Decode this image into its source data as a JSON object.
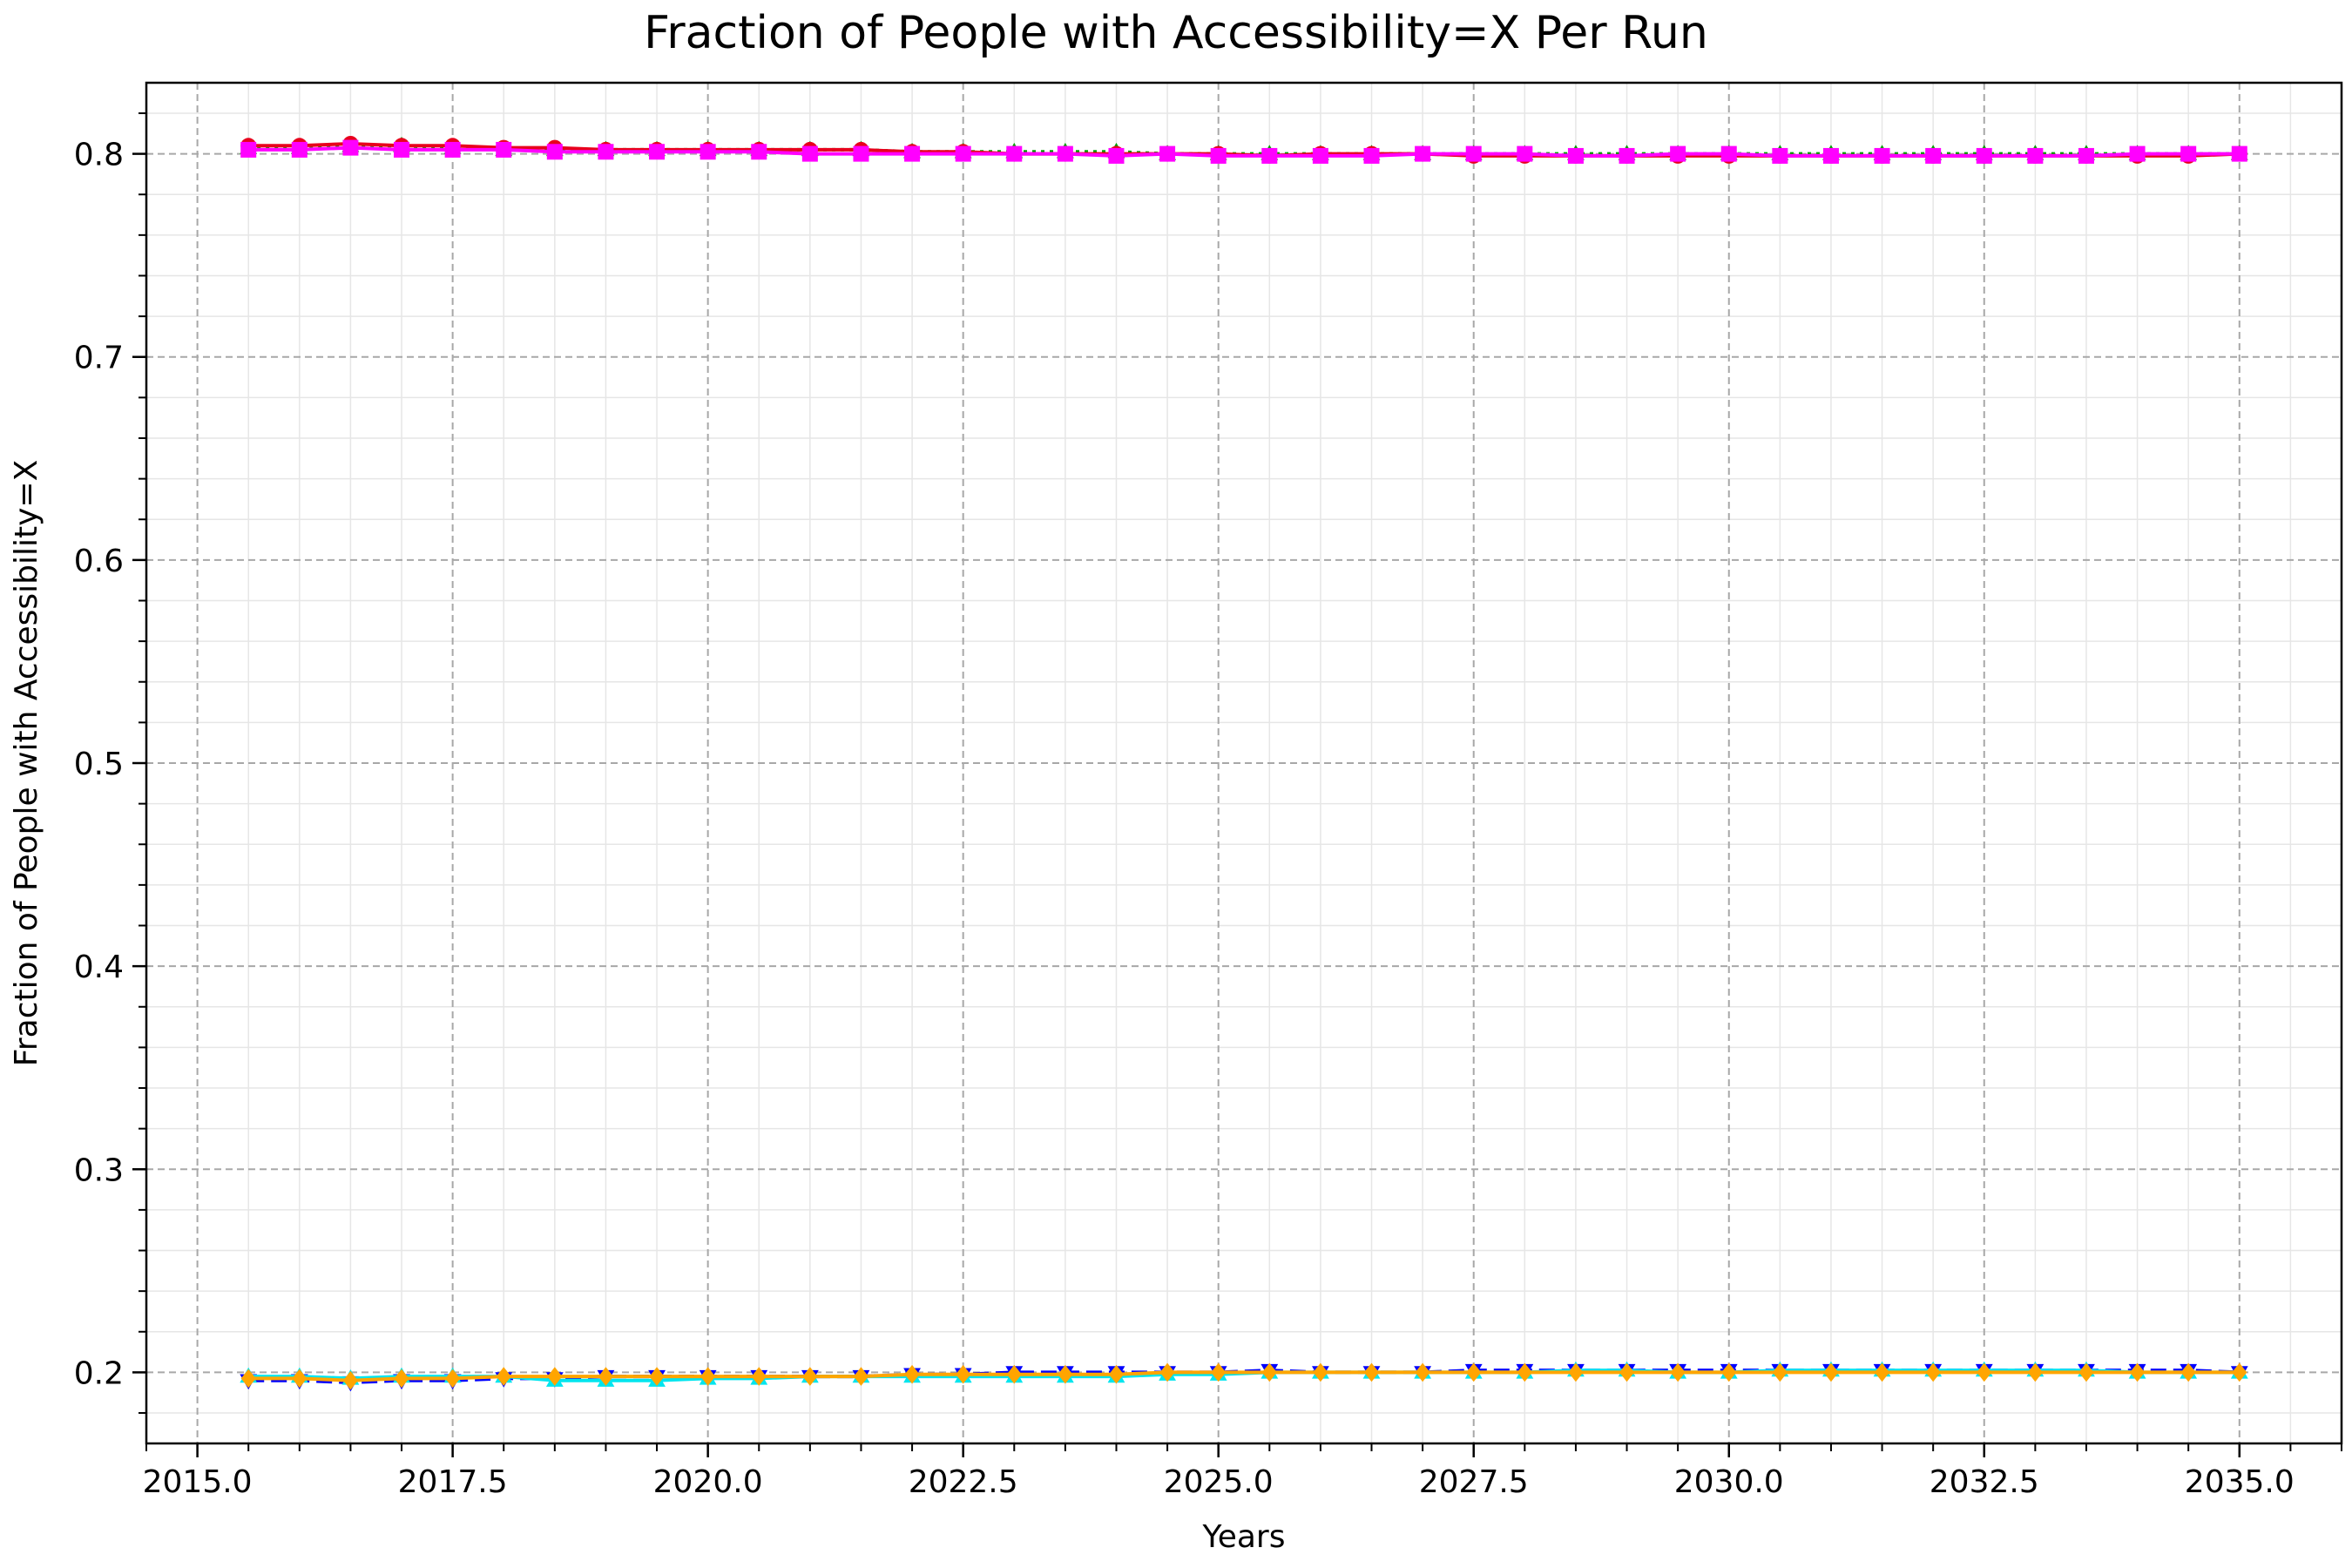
{
  "chart_data": {
    "type": "line",
    "title": "Fraction of People with Accessibility=X Per Run",
    "xlabel": "Years",
    "ylabel": "Fraction of People with Accessibility=X",
    "xlim": [
      2014.5,
      2036.0
    ],
    "ylim": [
      0.165,
      0.835
    ],
    "xticks": [
      "2015.0",
      "2017.5",
      "2020.0",
      "2022.5",
      "2025.0",
      "2027.5",
      "2030.0",
      "2032.5",
      "2035.0"
    ],
    "yticks": [
      "0.2",
      "0.3",
      "0.4",
      "0.5",
      "0.6",
      "0.7",
      "0.8"
    ],
    "grid": true,
    "minor_grid": true,
    "legend": "none",
    "x": [
      2015.5,
      2016.0,
      2016.5,
      2017.0,
      2017.5,
      2018.0,
      2018.5,
      2019.0,
      2019.5,
      2020.0,
      2020.5,
      2021.0,
      2021.5,
      2022.0,
      2022.5,
      2023.0,
      2023.5,
      2024.0,
      2024.5,
      2025.0,
      2025.5,
      2026.0,
      2026.5,
      2027.0,
      2027.5,
      2028.0,
      2028.5,
      2029.0,
      2029.5,
      2030.0,
      2030.5,
      2031.0,
      2031.5,
      2032.0,
      2032.5,
      2033.0,
      2033.5,
      2034.0,
      2034.5,
      2035.0
    ],
    "series": [
      {
        "color": "#00a000",
        "marker": "triangle-up",
        "dash": "dotted",
        "values": [
          0.803,
          0.803,
          0.804,
          0.804,
          0.803,
          0.802,
          0.802,
          0.802,
          0.802,
          0.802,
          0.802,
          0.802,
          0.802,
          0.801,
          0.801,
          0.801,
          0.801,
          0.801,
          0.8,
          0.8,
          0.8,
          0.8,
          0.8,
          0.8,
          0.8,
          0.8,
          0.8,
          0.8,
          0.8,
          0.8,
          0.8,
          0.8,
          0.8,
          0.8,
          0.8,
          0.8,
          0.8,
          0.8,
          0.8,
          0.8
        ]
      },
      {
        "color": "#e8001c",
        "marker": "circle",
        "dash": "solid",
        "values": [
          0.804,
          0.804,
          0.805,
          0.804,
          0.804,
          0.803,
          0.803,
          0.802,
          0.802,
          0.802,
          0.802,
          0.802,
          0.802,
          0.801,
          0.801,
          0.8,
          0.8,
          0.8,
          0.8,
          0.8,
          0.799,
          0.8,
          0.8,
          0.8,
          0.799,
          0.799,
          0.799,
          0.799,
          0.799,
          0.799,
          0.799,
          0.799,
          0.799,
          0.799,
          0.799,
          0.799,
          0.799,
          0.799,
          0.799,
          0.8
        ]
      },
      {
        "color": "#ff00ff",
        "marker": "square",
        "dash": "solid",
        "values": [
          0.802,
          0.802,
          0.803,
          0.802,
          0.802,
          0.802,
          0.801,
          0.801,
          0.801,
          0.801,
          0.801,
          0.8,
          0.8,
          0.8,
          0.8,
          0.8,
          0.8,
          0.799,
          0.8,
          0.799,
          0.799,
          0.799,
          0.799,
          0.8,
          0.8,
          0.8,
          0.799,
          0.799,
          0.8,
          0.8,
          0.799,
          0.799,
          0.799,
          0.799,
          0.799,
          0.799,
          0.799,
          0.8,
          0.8,
          0.8
        ]
      },
      {
        "color": "#0000ff",
        "marker": "triangle-down",
        "dash": "dashed",
        "values": [
          0.196,
          0.196,
          0.195,
          0.196,
          0.196,
          0.197,
          0.197,
          0.198,
          0.198,
          0.198,
          0.198,
          0.198,
          0.198,
          0.199,
          0.199,
          0.2,
          0.2,
          0.2,
          0.2,
          0.2,
          0.201,
          0.2,
          0.2,
          0.2,
          0.201,
          0.201,
          0.201,
          0.201,
          0.201,
          0.201,
          0.201,
          0.201,
          0.201,
          0.201,
          0.201,
          0.201,
          0.201,
          0.201,
          0.201,
          0.2
        ]
      },
      {
        "color": "#00e5ee",
        "marker": "triangle-up",
        "dash": "solid",
        "values": [
          0.198,
          0.198,
          0.197,
          0.198,
          0.198,
          0.198,
          0.196,
          0.196,
          0.196,
          0.197,
          0.197,
          0.198,
          0.198,
          0.198,
          0.198,
          0.198,
          0.198,
          0.198,
          0.199,
          0.199,
          0.2,
          0.2,
          0.2,
          0.2,
          0.2,
          0.2,
          0.201,
          0.201,
          0.2,
          0.2,
          0.201,
          0.201,
          0.201,
          0.201,
          0.201,
          0.201,
          0.201,
          0.2,
          0.2,
          0.2
        ]
      },
      {
        "color": "#ffa500",
        "marker": "diamond",
        "dash": "solid",
        "values": [
          0.197,
          0.197,
          0.196,
          0.197,
          0.197,
          0.198,
          0.198,
          0.198,
          0.198,
          0.198,
          0.198,
          0.198,
          0.198,
          0.199,
          0.199,
          0.199,
          0.199,
          0.199,
          0.2,
          0.2,
          0.2,
          0.2,
          0.2,
          0.2,
          0.2,
          0.2,
          0.2,
          0.2,
          0.2,
          0.2,
          0.2,
          0.2,
          0.2,
          0.2,
          0.2,
          0.2,
          0.2,
          0.2,
          0.2,
          0.2
        ]
      }
    ]
  }
}
